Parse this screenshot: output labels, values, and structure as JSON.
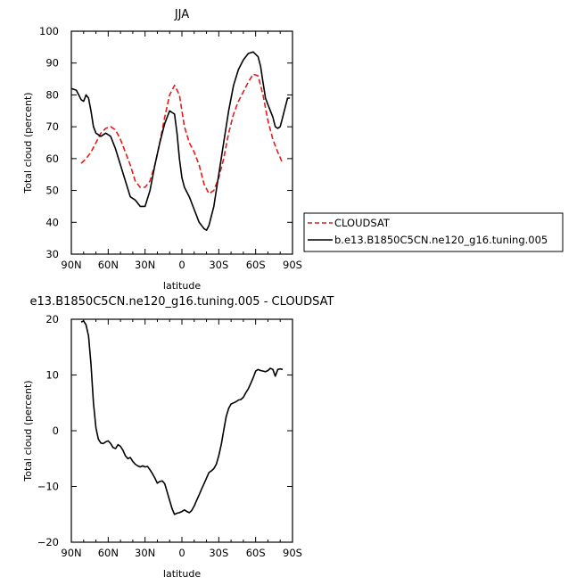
{
  "chart_data": [
    {
      "type": "line",
      "title": "JJA",
      "xlabel": "latitude",
      "ylabel": "Total cloud (percent)",
      "xlim": [
        90,
        -90
      ],
      "ylim": [
        30,
        100
      ],
      "x_ticks": [
        90,
        60,
        30,
        0,
        -30,
        -60,
        -90
      ],
      "x_tick_labels": [
        "90N",
        "60N",
        "30N",
        "0",
        "30S",
        "60S",
        "90S"
      ],
      "y_ticks": [
        30,
        40,
        50,
        60,
        70,
        80,
        90,
        100
      ],
      "y_tick_labels": [
        "30",
        "40",
        "50",
        "60",
        "70",
        "80",
        "90",
        "100"
      ],
      "legend": {
        "placement": "right",
        "entries": [
          {
            "label": "CLOUDSAT",
            "color": "#e41a1c",
            "dash": "dashed"
          },
          {
            "label": "b.e13.B1850C5CN.ne120_g16.tuning.005",
            "color": "#000000",
            "dash": "solid"
          }
        ]
      },
      "series": [
        {
          "name": "CLOUDSAT",
          "color": "#e41a1c",
          "dashed": true,
          "x": [
            82,
            78,
            74,
            70,
            66,
            62,
            58,
            54,
            50,
            46,
            42,
            38,
            34,
            30,
            26,
            22,
            18,
            14,
            10,
            6,
            2,
            -2,
            -6,
            -10,
            -14,
            -18,
            -22,
            -26,
            -30,
            -34,
            -38,
            -42,
            -46,
            -50,
            -54,
            -58,
            -62,
            -66,
            -70,
            -74,
            -78,
            -82
          ],
          "values": [
            58.5,
            60,
            62,
            65,
            68,
            69.5,
            70,
            69,
            66,
            62,
            58,
            53,
            51,
            51,
            53,
            58,
            65,
            73,
            80,
            83,
            80,
            70,
            65,
            62,
            58,
            52,
            49,
            50,
            54,
            60,
            68,
            74,
            78,
            81,
            84,
            86.5,
            86,
            80,
            72,
            66,
            62,
            58.5
          ]
        },
        {
          "name": "b.e13.B1850C5CN.ne120_g16.tuning.005",
          "color": "#000000",
          "dashed": false,
          "x": [
            90,
            86,
            84,
            82,
            80,
            78,
            76,
            74,
            72,
            70,
            66,
            62,
            58,
            54,
            50,
            46,
            42,
            38,
            34,
            30,
            26,
            22,
            18,
            14,
            10,
            6,
            4,
            2,
            0,
            -2,
            -6,
            -10,
            -14,
            -18,
            -20,
            -22,
            -26,
            -30,
            -34,
            -38,
            -42,
            -46,
            -50,
            -54,
            -58,
            -62,
            -64,
            -66,
            -68,
            -70,
            -72,
            -74,
            -76,
            -78,
            -80,
            -82,
            -84,
            -86,
            -88
          ],
          "values": [
            82,
            81.5,
            80,
            78.5,
            78,
            80,
            79,
            75,
            70,
            68,
            67,
            68,
            67,
            63,
            58,
            53,
            48,
            47,
            45,
            45,
            50,
            58,
            65,
            71,
            75,
            74,
            68,
            60,
            54,
            51,
            48,
            44,
            40,
            38,
            37.5,
            39,
            45,
            55,
            65,
            75,
            83,
            88,
            91,
            93,
            93.5,
            92,
            89,
            84,
            79,
            77,
            75,
            73,
            70,
            69.5,
            70,
            73,
            76,
            79,
            79
          ]
        }
      ]
    },
    {
      "type": "line",
      "title": "e13.B1850C5CN.ne120_g16.tuning.005 - CLOUDSAT",
      "xlabel": "latitude",
      "ylabel": "Total cloud (percent)",
      "xlim": [
        90,
        -90
      ],
      "ylim": [
        -20,
        20
      ],
      "x_ticks": [
        90,
        60,
        30,
        0,
        -30,
        -60,
        -90
      ],
      "x_tick_labels": [
        "90N",
        "60N",
        "30N",
        "0",
        "30S",
        "60S",
        "90S"
      ],
      "y_ticks": [
        -20,
        -10,
        0,
        10,
        20
      ],
      "y_tick_labels": [
        "−20",
        "−10",
        "0",
        "10",
        "20"
      ],
      "series": [
        {
          "color": "#000000",
          "dashed": false,
          "x": [
            82,
            80,
            78,
            76,
            74,
            72,
            70,
            68,
            66,
            64,
            62,
            60,
            58,
            56,
            54,
            52,
            50,
            48,
            46,
            44,
            42,
            40,
            38,
            36,
            34,
            32,
            30,
            28,
            26,
            24,
            22,
            20,
            18,
            16,
            14,
            12,
            10,
            8,
            6,
            4,
            2,
            0,
            -2,
            -4,
            -6,
            -8,
            -10,
            -12,
            -14,
            -16,
            -18,
            -20,
            -22,
            -24,
            -26,
            -28,
            -30,
            -32,
            -34,
            -36,
            -38,
            -40,
            -42,
            -44,
            -46,
            -48,
            -50,
            -52,
            -54,
            -56,
            -58,
            -60,
            -62,
            -64,
            -66,
            -68,
            -70,
            -72,
            -74,
            -76,
            -78,
            -80,
            -82
          ],
          "values": [
            19.5,
            19.7,
            19,
            17,
            12,
            5,
            0.5,
            -1.5,
            -2.2,
            -2.3,
            -2,
            -1.8,
            -2.3,
            -3,
            -3.2,
            -2.5,
            -2.8,
            -3.5,
            -4.5,
            -5,
            -4.8,
            -5.5,
            -6,
            -6.3,
            -6.5,
            -6.3,
            -6.5,
            -6.4,
            -7,
            -7.7,
            -8.5,
            -9.4,
            -9.1,
            -9,
            -9.5,
            -11,
            -12.5,
            -14,
            -15,
            -14.8,
            -14.7,
            -14.5,
            -14.2,
            -14.5,
            -14.7,
            -14.3,
            -13.5,
            -12.5,
            -11.5,
            -10.5,
            -9.5,
            -8.5,
            -7.5,
            -7.2,
            -6.8,
            -6,
            -4.5,
            -2.5,
            0,
            2.5,
            4,
            4.8,
            5,
            5.2,
            5.5,
            5.6,
            6,
            6.8,
            7.5,
            8.5,
            9.5,
            10.7,
            11,
            10.8,
            10.7,
            10.6,
            10.8,
            11.2,
            11,
            9.8,
            11,
            11.1,
            11
          ]
        }
      ]
    }
  ]
}
